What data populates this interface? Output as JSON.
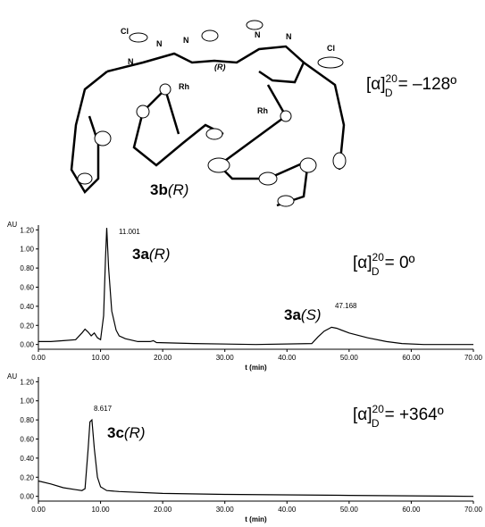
{
  "structure": {
    "atom_labels": [
      "Cl",
      "N",
      "N",
      "N",
      "N",
      "N",
      "Cl",
      "Rh",
      "Rh"
    ],
    "stereo_label": "(R)",
    "compound": {
      "bold": "3b",
      "italic": "(R)"
    },
    "rotation": {
      "symbol": "[α]",
      "sup": "20",
      "sub": "D",
      "value": "= –128º"
    }
  },
  "chart_data": [
    {
      "type": "line",
      "y_label": "AU",
      "x_label": "t (min)",
      "color": "#000000",
      "x": [
        0,
        2,
        4,
        6,
        7,
        7.5,
        8,
        8.5,
        9,
        9.5,
        10,
        10.5,
        10.8,
        11.001,
        11.3,
        11.8,
        12.5,
        13,
        14,
        16,
        18,
        18.5,
        19,
        25,
        35,
        44,
        45,
        46,
        47.168,
        48,
        50,
        53,
        56,
        58.5,
        62,
        70
      ],
      "values": [
        0.03,
        0.03,
        0.04,
        0.05,
        0.12,
        0.16,
        0.13,
        0.09,
        0.12,
        0.07,
        0.05,
        0.3,
        0.9,
        1.22,
        0.8,
        0.35,
        0.15,
        0.09,
        0.06,
        0.03,
        0.03,
        0.04,
        0.02,
        0.01,
        0.0,
        0.01,
        0.08,
        0.14,
        0.18,
        0.17,
        0.12,
        0.07,
        0.03,
        0.01,
        0.0,
        0.0
      ],
      "peak_labels": [
        "11.001",
        "47.168"
      ],
      "compound_labels": [
        {
          "bold": "3a",
          "italic": "(R)"
        },
        {
          "bold": "3a",
          "italic": "(S)"
        }
      ],
      "rotation": {
        "symbol": "[α]",
        "sup": "20",
        "sub": "D",
        "value": "= 0º"
      },
      "xlim": [
        0,
        70
      ],
      "xticks": [
        {
          "value": 0,
          "label": "0.00"
        },
        {
          "value": 10,
          "label": "10.00"
        },
        {
          "value": 20,
          "label": "20.00"
        },
        {
          "value": 30,
          "label": "30.00"
        },
        {
          "value": 40,
          "label": "40.00"
        },
        {
          "value": 50,
          "label": "50.00"
        },
        {
          "value": 60,
          "label": "60.00"
        },
        {
          "value": 70,
          "label": "70.00"
        }
      ],
      "ylim": [
        -0.05,
        1.25
      ],
      "yticks": [
        {
          "value": 0,
          "label": "0.00"
        },
        {
          "value": 0.2,
          "label": "0.20"
        },
        {
          "value": 0.4,
          "label": "0.40"
        },
        {
          "value": 0.6,
          "label": "0.60"
        },
        {
          "value": 0.8,
          "label": "0.80"
        },
        {
          "value": 1,
          "label": "1.00"
        },
        {
          "value": 1.2,
          "label": "1.20"
        }
      ]
    },
    {
      "type": "line",
      "y_label": "AU",
      "x_label": "t (min)",
      "color": "#000000",
      "x": [
        0,
        2,
        4,
        6,
        7,
        7.5,
        8,
        8.3,
        8.617,
        9,
        9.5,
        10,
        11,
        13,
        20,
        30,
        50,
        70
      ],
      "values": [
        0.16,
        0.13,
        0.09,
        0.07,
        0.06,
        0.08,
        0.5,
        0.78,
        0.8,
        0.5,
        0.2,
        0.1,
        0.06,
        0.05,
        0.03,
        0.02,
        0.01,
        0.0
      ],
      "peak_labels": [
        "8.617"
      ],
      "compound_labels": [
        {
          "bold": "3c",
          "italic": "(R)"
        }
      ],
      "rotation": {
        "symbol": "[α]",
        "sup": "20",
        "sub": "D",
        "value": "= +364º"
      },
      "xlim": [
        0,
        70
      ],
      "xticks": [
        {
          "value": 0,
          "label": "0.00"
        },
        {
          "value": 10,
          "label": "10.00"
        },
        {
          "value": 20,
          "label": "20.00"
        },
        {
          "value": 30,
          "label": "30.00"
        },
        {
          "value": 40,
          "label": "40.00"
        },
        {
          "value": 50,
          "label": "50.00"
        },
        {
          "value": 60,
          "label": "60.00"
        },
        {
          "value": 70,
          "label": "70.00"
        }
      ],
      "ylim": [
        -0.05,
        1.25
      ],
      "yticks": [
        {
          "value": 0,
          "label": "0.00"
        },
        {
          "value": 0.2,
          "label": "0.20"
        },
        {
          "value": 0.4,
          "label": "0.40"
        },
        {
          "value": 0.6,
          "label": "0.60"
        },
        {
          "value": 0.8,
          "label": "0.80"
        },
        {
          "value": 1,
          "label": "1.00"
        },
        {
          "value": 1.2,
          "label": "1.20"
        }
      ]
    }
  ]
}
